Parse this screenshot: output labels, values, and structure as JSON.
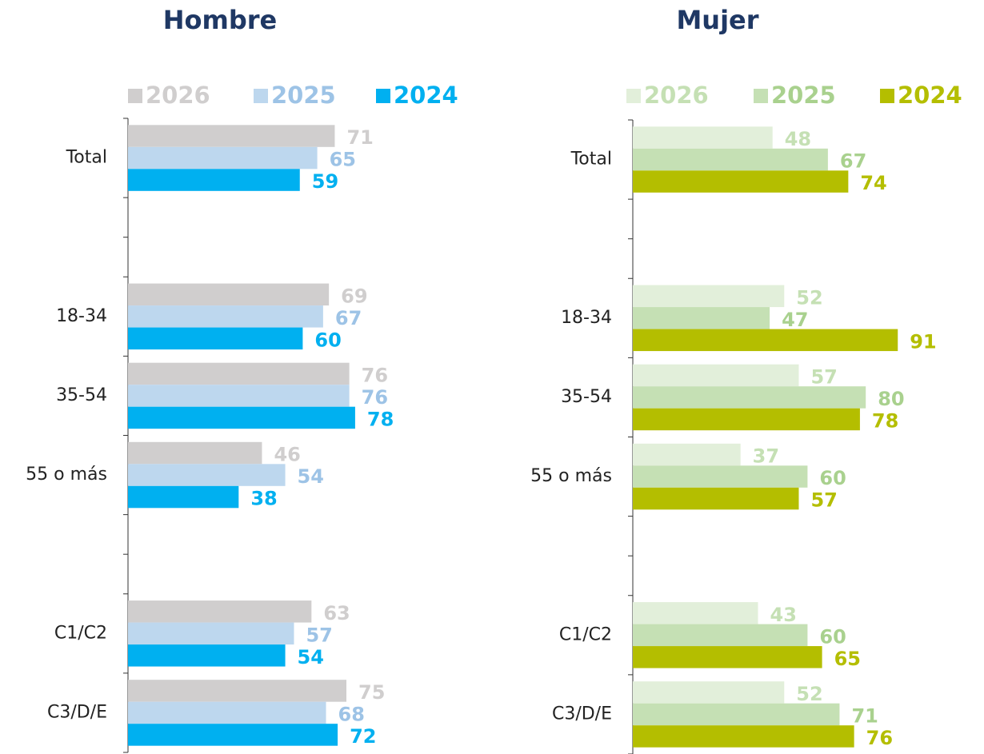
{
  "chart_data": [
    {
      "type": "bar",
      "orientation": "horizontal",
      "title": "Hombre",
      "categories": [
        "Total",
        null,
        "18-34",
        "35-54",
        "55 o más",
        null,
        "C1/C2",
        "C3/D/E"
      ],
      "xlim": [
        0,
        100
      ],
      "series": [
        {
          "name": "2026",
          "color": "#d0cece",
          "label_color": "#d0cece",
          "values": [
            71,
            null,
            69,
            76,
            46,
            null,
            63,
            75
          ]
        },
        {
          "name": "2025",
          "color": "#bdd7ee",
          "label_color": "#9dc3e6",
          "values": [
            65,
            null,
            67,
            76,
            54,
            null,
            57,
            68
          ]
        },
        {
          "name": "2024",
          "color": "#00b0f0",
          "label_color": "#00b0f0",
          "values": [
            59,
            null,
            60,
            78,
            38,
            null,
            54,
            72
          ]
        }
      ]
    },
    {
      "type": "bar",
      "orientation": "horizontal",
      "title": "Mujer",
      "categories": [
        "Total",
        null,
        "18-34",
        "35-54",
        "55 o más",
        null,
        "C1/C2",
        "C3/D/E"
      ],
      "xlim": [
        0,
        100
      ],
      "series": [
        {
          "name": "2026",
          "color": "#e2efda",
          "label_color": "#c5e0b4",
          "values": [
            48,
            null,
            52,
            57,
            37,
            null,
            43,
            52
          ]
        },
        {
          "name": "2025",
          "color": "#c5e0b4",
          "label_color": "#a9d18e",
          "values": [
            67,
            null,
            47,
            80,
            60,
            null,
            60,
            71
          ]
        },
        {
          "name": "2024",
          "color": "#b4be00",
          "label_color": "#b4be00",
          "values": [
            74,
            null,
            91,
            78,
            57,
            null,
            65,
            76
          ]
        }
      ]
    }
  ]
}
